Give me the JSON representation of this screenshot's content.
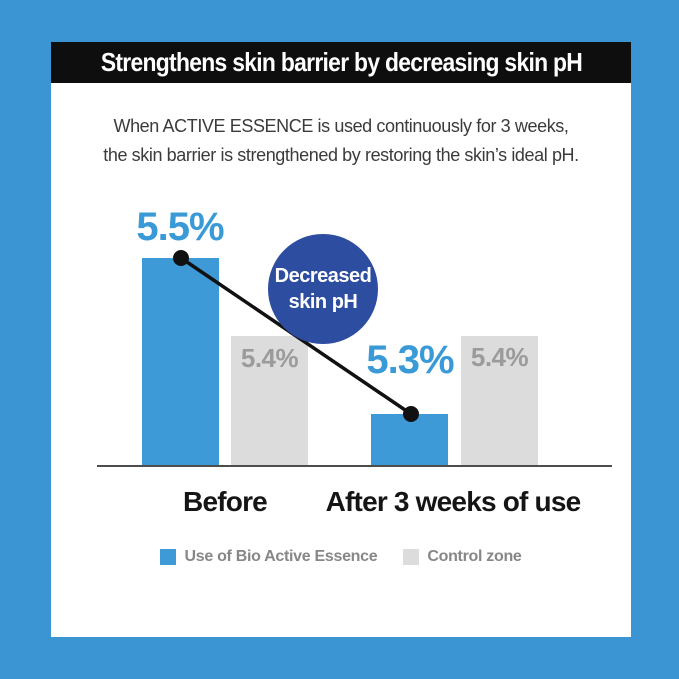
{
  "banner": {
    "title": "Strengthens skin barrier by decreasing skin pH",
    "bg": "#0e0e0e",
    "text_color": "#ffffff"
  },
  "subtitle": {
    "line1": "When ACTIVE ESSENCE is used continuously for 3 weeks,",
    "line2": "the skin barrier is strengthened by restoring the skin’s ideal pH."
  },
  "badge": {
    "line1": "Decreased",
    "line2": "skin pH",
    "bg": "#2d4da0",
    "text_color": "#ffffff"
  },
  "colors": {
    "background_blue": "#3b95d3",
    "accent_blue": "#3a9ad8",
    "value_gray": "#9b9b9b",
    "axis": "#4d4d4d",
    "legend_text": "#878787",
    "category_text": "#151515",
    "trend_line": "#111111"
  },
  "chart_data": {
    "type": "bar",
    "title": "Strengthens skin barrier by decreasing skin pH",
    "categories": [
      "Before",
      "After 3 weeks of use"
    ],
    "series": [
      {
        "name": "Use of Bio Active Essence",
        "color": "#3d9ad6",
        "values": [
          5.5,
          5.3
        ],
        "display": [
          "5.5%",
          "5.3%"
        ]
      },
      {
        "name": "Control zone",
        "color": "#dcdcdd",
        "values": [
          5.4,
          5.4
        ],
        "display": [
          "5.4%",
          "5.4%"
        ]
      }
    ],
    "annotation": "Decreased skin pH",
    "ylim": [
      5.2333,
      5.6
    ],
    "grid": false,
    "legend_position": "bottom"
  }
}
